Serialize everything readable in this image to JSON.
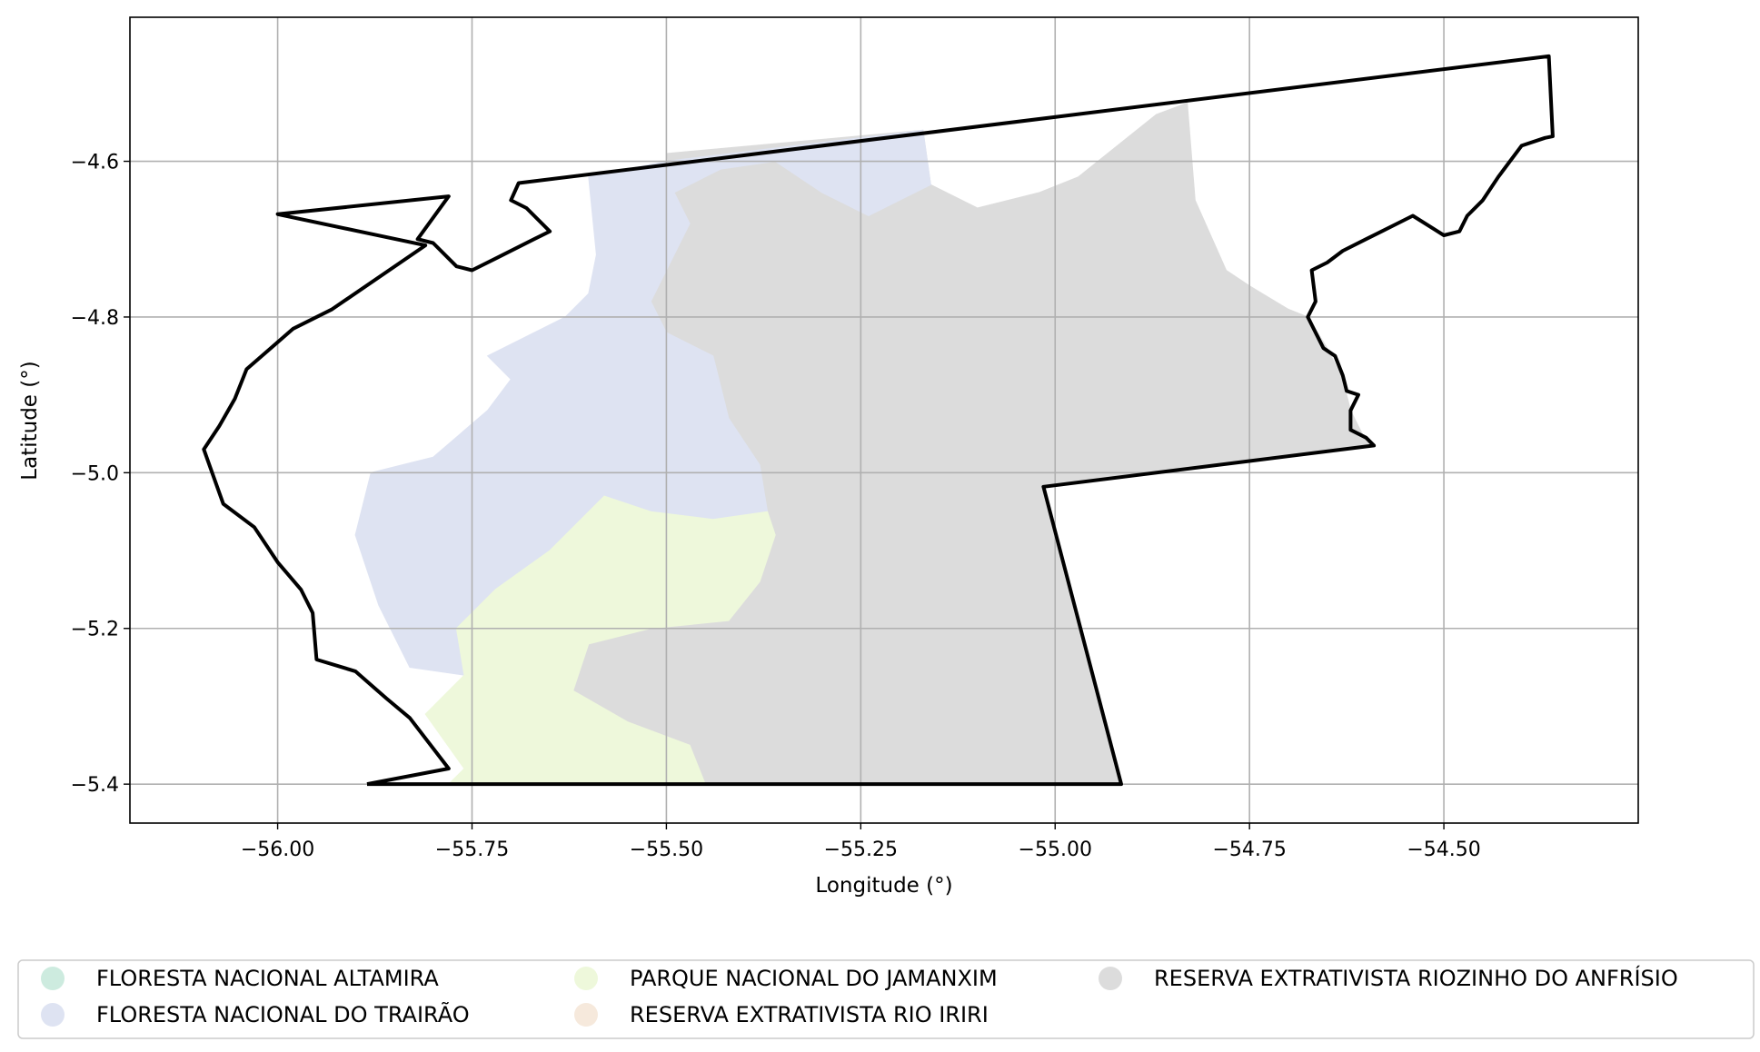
{
  "chart_data": {
    "type": "map",
    "xlabel": "Longitude (°)",
    "ylabel": "Latitude (°)",
    "xlim": [
      -56.19,
      -54.25
    ],
    "ylim": [
      -5.45,
      -4.415
    ],
    "xticks": [
      {
        "value": -56.0,
        "label": "−56.00"
      },
      {
        "value": -55.75,
        "label": "−55.75"
      },
      {
        "value": -55.5,
        "label": "−55.50"
      },
      {
        "value": -55.25,
        "label": "−55.25"
      },
      {
        "value": -55.0,
        "label": "−55.00"
      },
      {
        "value": -54.75,
        "label": "−54.75"
      },
      {
        "value": -54.5,
        "label": "−54.50"
      }
    ],
    "yticks": [
      {
        "value": -4.6,
        "label": "−4.6"
      },
      {
        "value": -4.8,
        "label": "−4.8"
      },
      {
        "value": -5.0,
        "label": "−5.0"
      },
      {
        "value": -5.2,
        "label": "−5.2"
      },
      {
        "value": -5.4,
        "label": "−5.4"
      }
    ],
    "grid": true,
    "legend_position": "bottom",
    "legend": [
      {
        "label": "FLORESTA NACIONAL ALTAMIRA",
        "color": "#cdebdf"
      },
      {
        "label": "FLORESTA NACIONAL DO TRAIRÃO",
        "color": "#dee3f2"
      },
      {
        "label": "PARQUE NACIONAL DO JAMANXIM",
        "color": "#eef8db"
      },
      {
        "label": "RESERVA EXTRATIVISTA RIO IRIRI",
        "color": "#f6e9dc"
      },
      {
        "label": "RESERVA EXTRATIVISTA RIOZINHO DO ANFRÍSIO",
        "color": "#dcdcdc"
      }
    ],
    "regions": [
      {
        "name": "RESERVA EXTRATIVISTA RIOZINHO DO ANFRÍSIO",
        "color": "#dcdcdc",
        "points": [
          [
            -55.5,
            -4.59
          ],
          [
            -55.17,
            -4.56
          ],
          [
            -55.16,
            -4.63
          ],
          [
            -55.1,
            -4.66
          ],
          [
            -55.02,
            -4.64
          ],
          [
            -54.97,
            -4.62
          ],
          [
            -54.92,
            -4.58
          ],
          [
            -54.87,
            -4.54
          ],
          [
            -54.83,
            -4.525
          ],
          [
            -54.82,
            -4.65
          ],
          [
            -54.78,
            -4.74
          ],
          [
            -54.75,
            -4.76
          ],
          [
            -54.7,
            -4.79
          ],
          [
            -54.675,
            -4.8
          ],
          [
            -54.65,
            -4.84
          ],
          [
            -54.63,
            -4.88
          ],
          [
            -54.62,
            -4.92
          ],
          [
            -54.6,
            -4.96
          ],
          [
            -54.59,
            -4.965
          ],
          [
            -55.015,
            -5.018
          ],
          [
            -54.915,
            -5.4
          ],
          [
            -55.45,
            -5.4
          ],
          [
            -55.47,
            -5.35
          ],
          [
            -55.55,
            -5.32
          ],
          [
            -55.62,
            -5.28
          ],
          [
            -55.6,
            -5.22
          ],
          [
            -55.52,
            -5.2
          ],
          [
            -55.42,
            -5.19
          ],
          [
            -55.38,
            -5.14
          ],
          [
            -55.36,
            -5.08
          ],
          [
            -55.37,
            -5.05
          ],
          [
            -55.38,
            -4.99
          ],
          [
            -55.42,
            -4.93
          ],
          [
            -55.44,
            -4.85
          ],
          [
            -55.5,
            -4.82
          ],
          [
            -55.52,
            -4.78
          ],
          [
            -55.5,
            -4.74
          ],
          [
            -55.47,
            -4.68
          ],
          [
            -55.49,
            -4.64
          ],
          [
            -55.5,
            -4.59
          ]
        ]
      },
      {
        "name": "FLORESTA NACIONAL DO TRAIRÃO",
        "color": "#dee3f2",
        "points": [
          [
            -55.6,
            -4.62
          ],
          [
            -55.5,
            -4.6
          ],
          [
            -55.17,
            -4.56
          ],
          [
            -55.16,
            -4.63
          ],
          [
            -55.24,
            -4.67
          ],
          [
            -55.3,
            -4.64
          ],
          [
            -55.36,
            -4.6
          ],
          [
            -55.43,
            -4.61
          ],
          [
            -55.49,
            -4.64
          ],
          [
            -55.47,
            -4.68
          ],
          [
            -55.5,
            -4.74
          ],
          [
            -55.52,
            -4.78
          ],
          [
            -55.5,
            -4.82
          ],
          [
            -55.44,
            -4.85
          ],
          [
            -55.42,
            -4.93
          ],
          [
            -55.38,
            -4.99
          ],
          [
            -55.37,
            -5.05
          ],
          [
            -55.44,
            -5.06
          ],
          [
            -55.52,
            -5.05
          ],
          [
            -55.58,
            -5.03
          ],
          [
            -55.65,
            -5.1
          ],
          [
            -55.72,
            -5.15
          ],
          [
            -55.77,
            -5.2
          ],
          [
            -55.76,
            -5.26
          ],
          [
            -55.83,
            -5.25
          ],
          [
            -55.87,
            -5.17
          ],
          [
            -55.9,
            -5.08
          ],
          [
            -55.88,
            -5.0
          ],
          [
            -55.8,
            -4.98
          ],
          [
            -55.73,
            -4.92
          ],
          [
            -55.7,
            -4.88
          ],
          [
            -55.73,
            -4.85
          ],
          [
            -55.63,
            -4.8
          ],
          [
            -55.6,
            -4.77
          ],
          [
            -55.59,
            -4.72
          ],
          [
            -55.6,
            -4.62
          ]
        ]
      },
      {
        "name": "PARQUE NACIONAL DO JAMANXIM",
        "color": "#eef8db",
        "points": [
          [
            -55.37,
            -5.05
          ],
          [
            -55.44,
            -5.06
          ],
          [
            -55.52,
            -5.05
          ],
          [
            -55.58,
            -5.03
          ],
          [
            -55.65,
            -5.1
          ],
          [
            -55.72,
            -5.15
          ],
          [
            -55.77,
            -5.2
          ],
          [
            -55.76,
            -5.26
          ],
          [
            -55.81,
            -5.31
          ],
          [
            -55.76,
            -5.38
          ],
          [
            -55.78,
            -5.4
          ],
          [
            -55.45,
            -5.4
          ],
          [
            -55.47,
            -5.35
          ],
          [
            -55.55,
            -5.32
          ],
          [
            -55.62,
            -5.28
          ],
          [
            -55.6,
            -5.22
          ],
          [
            -55.52,
            -5.2
          ],
          [
            -55.42,
            -5.19
          ],
          [
            -55.38,
            -5.14
          ],
          [
            -55.36,
            -5.08
          ],
          [
            -55.37,
            -5.05
          ]
        ]
      }
    ],
    "boundary": [
      [
        -55.885,
        -5.4
      ],
      [
        -54.915,
        -5.4
      ],
      [
        -55.015,
        -5.018
      ],
      [
        -54.59,
        -4.965
      ],
      [
        -54.6,
        -4.955
      ],
      [
        -54.62,
        -4.945
      ],
      [
        -54.62,
        -4.92
      ],
      [
        -54.61,
        -4.9
      ],
      [
        -54.625,
        -4.895
      ],
      [
        -54.63,
        -4.875
      ],
      [
        -54.64,
        -4.85
      ],
      [
        -54.655,
        -4.84
      ],
      [
        -54.67,
        -4.81
      ],
      [
        -54.675,
        -4.8
      ],
      [
        -54.665,
        -4.78
      ],
      [
        -54.67,
        -4.74
      ],
      [
        -54.65,
        -4.73
      ],
      [
        -54.63,
        -4.715
      ],
      [
        -54.6,
        -4.7
      ],
      [
        -54.58,
        -4.69
      ],
      [
        -54.56,
        -4.68
      ],
      [
        -54.54,
        -4.67
      ],
      [
        -54.5,
        -4.695
      ],
      [
        -54.48,
        -4.69
      ],
      [
        -54.47,
        -4.67
      ],
      [
        -54.45,
        -4.65
      ],
      [
        -54.43,
        -4.62
      ],
      [
        -54.4,
        -4.58
      ],
      [
        -54.37,
        -4.57
      ],
      [
        -54.36,
        -4.568
      ],
      [
        -54.365,
        -4.465
      ],
      [
        -55.69,
        -4.628
      ],
      [
        -55.7,
        -4.65
      ],
      [
        -55.68,
        -4.66
      ],
      [
        -55.65,
        -4.69
      ],
      [
        -55.67,
        -4.7
      ],
      [
        -55.72,
        -4.725
      ],
      [
        -55.75,
        -4.74
      ],
      [
        -55.77,
        -4.735
      ],
      [
        -55.8,
        -4.705
      ],
      [
        -55.82,
        -4.7
      ],
      [
        -55.78,
        -4.645
      ],
      [
        -56.0,
        -4.668
      ],
      [
        -55.81,
        -4.708
      ],
      [
        -55.93,
        -4.79
      ],
      [
        -55.98,
        -4.815
      ],
      [
        -56.04,
        -4.867
      ],
      [
        -56.055,
        -4.905
      ],
      [
        -56.075,
        -4.94
      ],
      [
        -56.095,
        -4.97
      ],
      [
        -56.07,
        -5.04
      ],
      [
        -56.03,
        -5.07
      ],
      [
        -56.0,
        -5.115
      ],
      [
        -55.97,
        -5.15
      ],
      [
        -55.955,
        -5.18
      ],
      [
        -55.95,
        -5.24
      ],
      [
        -55.9,
        -5.255
      ],
      [
        -55.86,
        -5.29
      ],
      [
        -55.83,
        -5.315
      ],
      [
        -55.78,
        -5.38
      ],
      [
        -55.885,
        -5.4
      ]
    ]
  }
}
